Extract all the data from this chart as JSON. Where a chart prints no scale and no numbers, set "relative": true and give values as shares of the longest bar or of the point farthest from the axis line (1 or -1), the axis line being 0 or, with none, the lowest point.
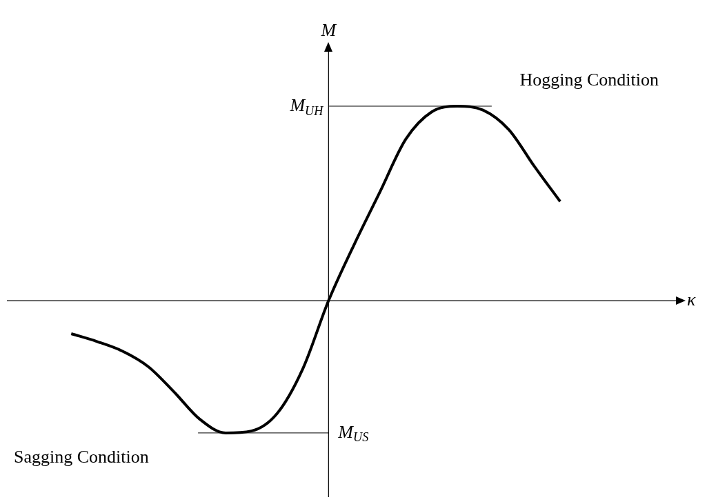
{
  "chart_data": {
    "type": "line",
    "relative": true,
    "xlabel": "κ",
    "ylabel": "M",
    "color": "#000000",
    "categories": [
      null,
      null,
      null,
      null,
      null,
      null,
      null,
      null,
      null,
      null,
      null,
      null,
      null,
      null,
      null,
      null,
      null,
      null,
      null,
      null,
      null,
      null,
      null,
      null,
      null,
      null
    ],
    "values": [
      null,
      null,
      -0.17,
      -0.21,
      -0.26,
      -0.34,
      -0.47,
      -0.61,
      -0.68,
      -0.67,
      -0.58,
      -0.35,
      0,
      0.29,
      0.56,
      0.83,
      0.97,
      1,
      0.98,
      0.88,
      0.69,
      0.51,
      null,
      null,
      null,
      null
    ],
    "ref_lines": [
      {
        "axis": "y",
        "value": 1,
        "label": "M$_{UH}$"
      },
      {
        "axis": "y",
        "value": -0.68,
        "label": "M$_{US}$"
      }
    ],
    "annotations": [
      "Hogging Condition",
      "Sagging Condition"
    ]
  }
}
